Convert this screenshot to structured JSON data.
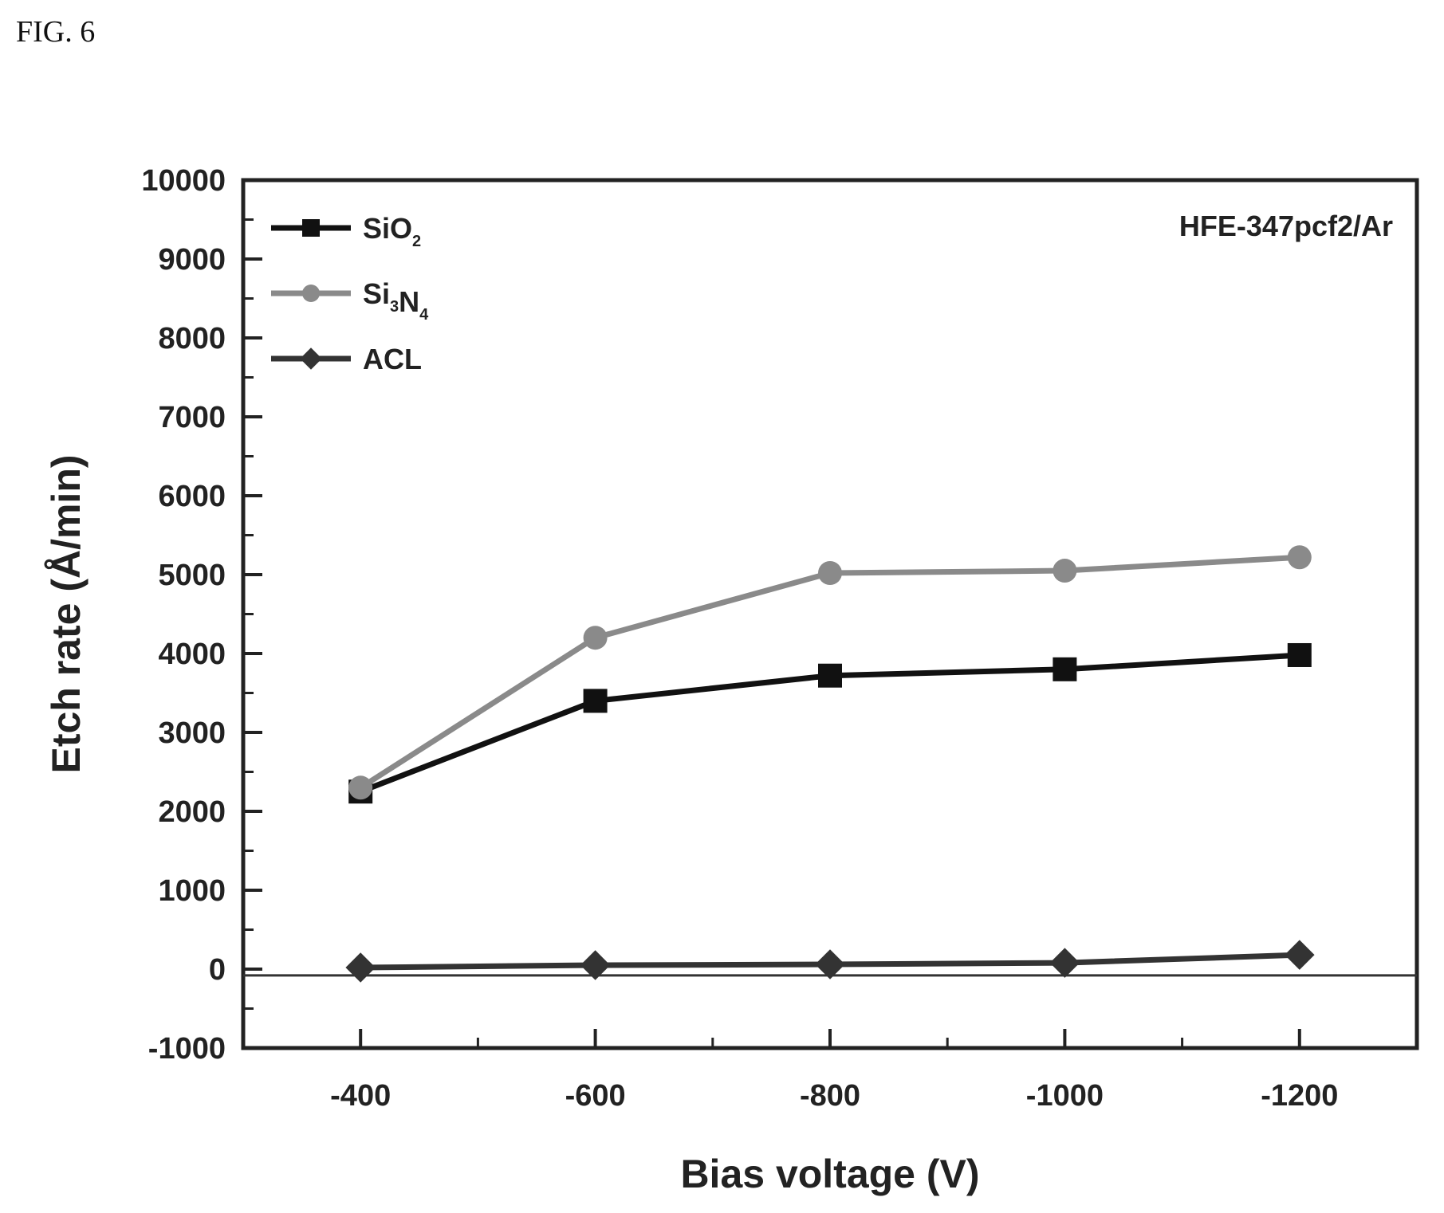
{
  "figure_label": "FIG. 6",
  "chart_data": {
    "type": "line",
    "x": [
      -400,
      -600,
      -800,
      -1000,
      -1200
    ],
    "xticks": [
      "-400",
      "-600",
      "-800",
      "-1000",
      "-1200"
    ],
    "yticks": [
      "-1000",
      "0",
      "1000",
      "2000",
      "3000",
      "4000",
      "5000",
      "6000",
      "7000",
      "8000",
      "9000",
      "10000"
    ],
    "xlabel": "Bias voltage (V)",
    "ylabel": "Etch rate (Å/min)",
    "ylim": [
      -1000,
      10000
    ],
    "xlim": [
      -300,
      -1300
    ],
    "annotation": "HFE-347pcf2/Ar",
    "legend_position": "top-left",
    "series": [
      {
        "name": "SiO",
        "subscripts": [
          "2"
        ],
        "values": [
          2250,
          3400,
          3720,
          3800,
          3980
        ],
        "color": "#111111",
        "marker": "square"
      },
      {
        "name": "Si N",
        "subscripts": [
          "3",
          "4"
        ],
        "values": [
          2300,
          4200,
          5020,
          5050,
          5220
        ],
        "color": "#8a8a8a",
        "marker": "circle"
      },
      {
        "name": "ACL",
        "subscripts": [],
        "values": [
          20,
          50,
          60,
          80,
          180
        ],
        "color": "#333333",
        "marker": "diamond"
      }
    ]
  }
}
